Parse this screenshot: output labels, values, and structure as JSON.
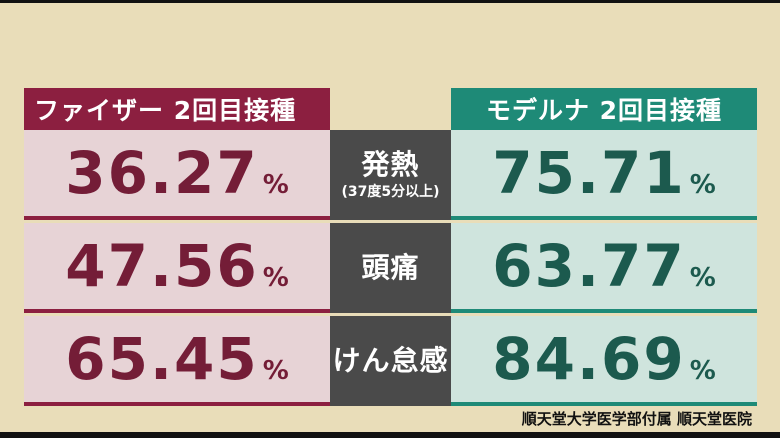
{
  "headers": {
    "pfizer": "ファイザー 2回目接種",
    "moderna": "モデルナ 2回目接種"
  },
  "rows": [
    {
      "label": "発熱",
      "sublabel": "(37度5分以上)",
      "pfizer": "36.27",
      "moderna": "75.71",
      "unit": "%"
    },
    {
      "label": "頭痛",
      "sublabel": "",
      "pfizer": "47.56",
      "moderna": "63.77",
      "unit": "%"
    },
    {
      "label": "けん怠感",
      "sublabel": "",
      "pfizer": "65.45",
      "moderna": "84.69",
      "unit": "%"
    }
  ],
  "source": "順天堂大学医学部付属 順天堂医院",
  "colors": {
    "pfizer_accent": "#8c1f40",
    "moderna_accent": "#1e8a77",
    "background": "#e9ddb9",
    "middle": "#4a4a4a"
  }
}
